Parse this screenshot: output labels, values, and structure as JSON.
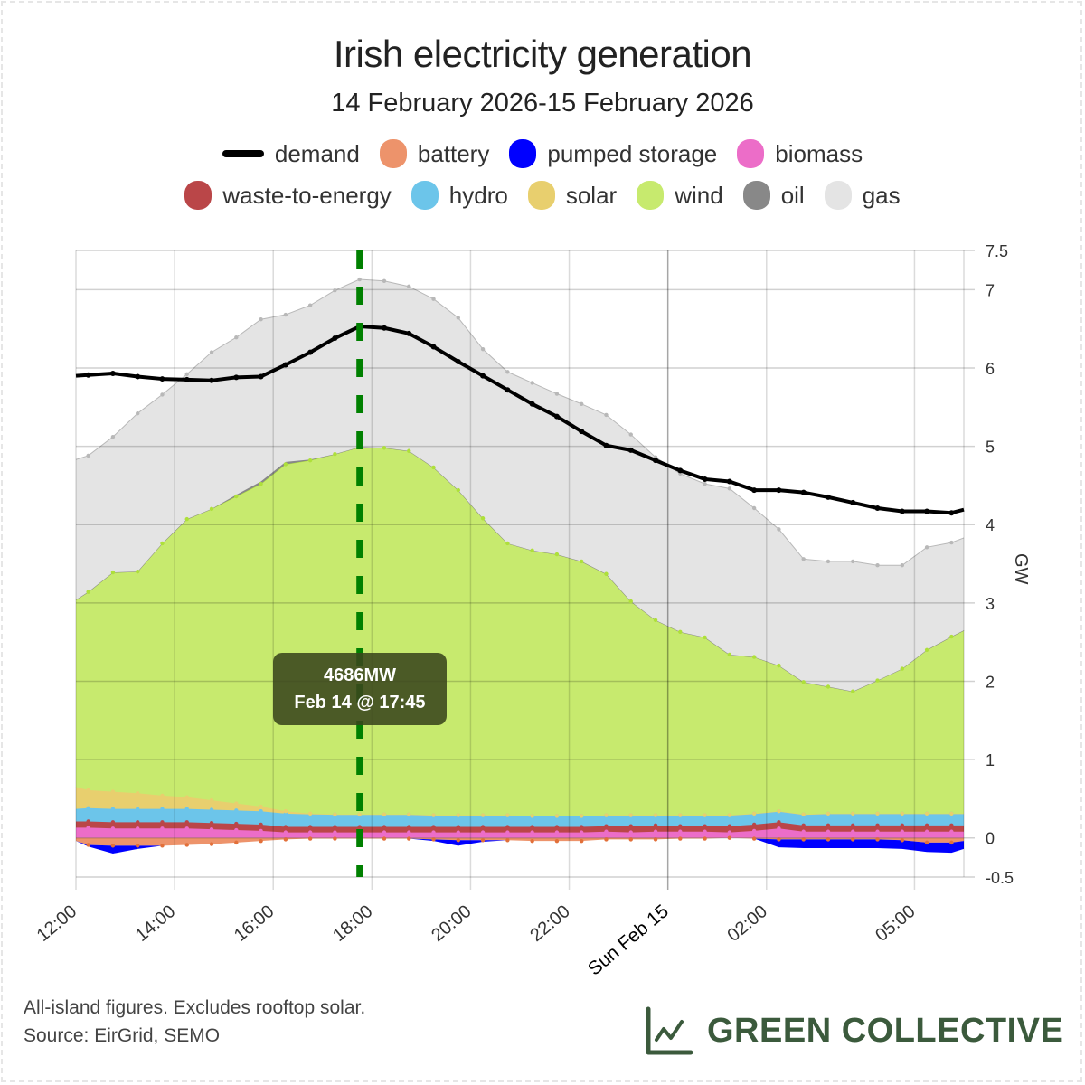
{
  "title": "Irish electricity generation",
  "subtitle": "14 February 2026-15 February 2026",
  "legend": [
    {
      "key": "demand",
      "label": "demand",
      "color": "#000000",
      "type": "line"
    },
    {
      "key": "battery",
      "label": "battery",
      "color": "#ED936B"
    },
    {
      "key": "pumped_storage",
      "label": "pumped storage",
      "color": "#0000FF"
    },
    {
      "key": "biomass",
      "label": "biomass",
      "color": "#EC6DC8"
    },
    {
      "key": "waste_to_energy",
      "label": "waste-to-energy",
      "color": "#BA4648"
    },
    {
      "key": "hydro",
      "label": "hydro",
      "color": "#6CC5EA"
    },
    {
      "key": "solar",
      "label": "solar",
      "color": "#E8CF6E"
    },
    {
      "key": "wind",
      "label": "wind",
      "color": "#C7EA6E"
    },
    {
      "key": "oil",
      "label": "oil",
      "color": "#888888"
    },
    {
      "key": "gas",
      "label": "gas",
      "color": "#E4E4E4"
    }
  ],
  "tooltip": {
    "value": "4686MW",
    "time": "Feb 14 @ 17:45"
  },
  "marker": {
    "x_hours": 5.75,
    "color": "#008000"
  },
  "footer": {
    "note1": "All-island figures. Excludes rooftop solar.",
    "note2": "Source: EirGrid, SEMO",
    "brand": "GREEN COLLECTIVE",
    "brand_color": "#3B5A3C"
  },
  "chart_data": {
    "type": "area",
    "title": "Irish electricity generation",
    "subtitle": "14 February 2026-15 February 2026",
    "xlabel": "",
    "ylabel": "GW",
    "ylim": [
      -0.5,
      7.5
    ],
    "yticks": [
      -0.5,
      0,
      1,
      2,
      3,
      4,
      5,
      6,
      7,
      7.5
    ],
    "ytick_labels": [
      "-0.5",
      "0",
      "1",
      "2",
      "3",
      "4",
      "5",
      "6",
      "7",
      "7.5"
    ],
    "xlim_hours_from_start": [
      0,
      18
    ],
    "xticks": [
      {
        "h": 0,
        "label": "12:00"
      },
      {
        "h": 2,
        "label": "14:00"
      },
      {
        "h": 4,
        "label": "16:00"
      },
      {
        "h": 6,
        "label": "18:00"
      },
      {
        "h": 8,
        "label": "20:00"
      },
      {
        "h": 10,
        "label": "22:00"
      },
      {
        "h": 12,
        "label": "Sun Feb 15",
        "major": true
      },
      {
        "h": 14,
        "label": "02:00"
      },
      {
        "h": 17,
        "label": "05:00"
      }
    ],
    "grid": true,
    "legend_position": "top",
    "x_hours": [
      0,
      0.25,
      0.75,
      1.25,
      1.75,
      2.25,
      2.75,
      3.25,
      3.75,
      4.25,
      4.75,
      5.25,
      5.75,
      6.25,
      6.75,
      7.25,
      7.75,
      8.25,
      8.75,
      9.25,
      9.75,
      10.25,
      10.75,
      11.25,
      11.75,
      12.25,
      12.75,
      13.25,
      13.75,
      14.25,
      14.75,
      15.25,
      15.75,
      16.25,
      16.75,
      17.25,
      17.75,
      18
    ],
    "demand": [
      5.9,
      5.91,
      5.93,
      5.89,
      5.86,
      5.85,
      5.84,
      5.88,
      5.89,
      6.04,
      6.2,
      6.38,
      6.53,
      6.51,
      6.44,
      6.27,
      6.08,
      5.9,
      5.72,
      5.54,
      5.38,
      5.19,
      5.01,
      4.95,
      4.82,
      4.69,
      4.58,
      4.55,
      4.44,
      4.44,
      4.41,
      4.35,
      4.28,
      4.21,
      4.17,
      4.17,
      4.15,
      4.19
    ],
    "series": [
      {
        "name": "biomass",
        "values": [
          0.13,
          0.13,
          0.12,
          0.12,
          0.12,
          0.12,
          0.11,
          0.1,
          0.09,
          0.07,
          0.07,
          0.07,
          0.07,
          0.07,
          0.07,
          0.07,
          0.07,
          0.07,
          0.07,
          0.07,
          0.07,
          0.07,
          0.08,
          0.07,
          0.08,
          0.08,
          0.08,
          0.07,
          0.09,
          0.12,
          0.08,
          0.08,
          0.08,
          0.08,
          0.08,
          0.08,
          0.08,
          0.08
        ]
      },
      {
        "name": "waste-to-energy",
        "values": [
          0.08,
          0.08,
          0.08,
          0.08,
          0.08,
          0.08,
          0.08,
          0.08,
          0.08,
          0.07,
          0.07,
          0.07,
          0.07,
          0.07,
          0.07,
          0.07,
          0.07,
          0.07,
          0.07,
          0.07,
          0.07,
          0.07,
          0.07,
          0.08,
          0.08,
          0.07,
          0.07,
          0.08,
          0.08,
          0.08,
          0.08,
          0.08,
          0.08,
          0.08,
          0.08,
          0.08,
          0.08,
          0.08
        ]
      },
      {
        "name": "hydro",
        "values": [
          0.16,
          0.17,
          0.17,
          0.17,
          0.17,
          0.17,
          0.17,
          0.17,
          0.17,
          0.17,
          0.16,
          0.16,
          0.16,
          0.16,
          0.16,
          0.15,
          0.15,
          0.15,
          0.15,
          0.14,
          0.14,
          0.14,
          0.14,
          0.14,
          0.13,
          0.14,
          0.14,
          0.14,
          0.14,
          0.14,
          0.14,
          0.15,
          0.15,
          0.15,
          0.15,
          0.15,
          0.15,
          0.15
        ]
      },
      {
        "name": "solar",
        "values": [
          0.28,
          0.23,
          0.22,
          0.2,
          0.17,
          0.15,
          0.12,
          0.09,
          0.06,
          0.03,
          0.01,
          0.0,
          0.0,
          0.0,
          0.0,
          0.0,
          0.0,
          0.0,
          0.0,
          0.0,
          0.0,
          0.0,
          0.0,
          0.0,
          0.0,
          0.0,
          0.0,
          0.0,
          0.0,
          0.0,
          0.0,
          0.0,
          0.0,
          0.0,
          0.0,
          0.0,
          0.0,
          0.0
        ]
      },
      {
        "name": "wind",
        "values": [
          2.39,
          2.53,
          2.8,
          2.83,
          3.22,
          3.55,
          3.72,
          3.92,
          4.12,
          4.43,
          4.51,
          4.6,
          4.69,
          4.68,
          4.64,
          4.44,
          4.15,
          3.79,
          3.47,
          3.39,
          3.34,
          3.25,
          3.08,
          2.73,
          2.49,
          2.34,
          2.27,
          2.05,
          2.0,
          1.86,
          1.69,
          1.62,
          1.56,
          1.7,
          1.85,
          2.09,
          2.26,
          2.34
        ]
      },
      {
        "name": "oil",
        "values": [
          0.0,
          0.0,
          0.0,
          0.0,
          0.0,
          0.0,
          0.0,
          0.02,
          0.03,
          0.03,
          0.01,
          0.0,
          0.0,
          0.0,
          0.0,
          0.0,
          0.0,
          0.0,
          0.0,
          0.0,
          0.0,
          0.0,
          0.0,
          0.0,
          0.0,
          0.0,
          0.0,
          0.0,
          0.0,
          0.0,
          0.0,
          0.0,
          0.0,
          0.0,
          0.0,
          0.0,
          0.0,
          0.0
        ]
      },
      {
        "name": "gas",
        "values": [
          1.79,
          1.74,
          1.73,
          2.02,
          1.9,
          1.85,
          2.0,
          2.01,
          2.07,
          1.88,
          1.97,
          2.09,
          2.14,
          2.13,
          2.1,
          2.15,
          2.2,
          2.16,
          2.19,
          2.14,
          2.05,
          2.01,
          2.03,
          2.13,
          2.08,
          2.02,
          1.96,
          2.12,
          1.9,
          1.74,
          1.57,
          1.6,
          1.66,
          1.47,
          1.32,
          1.31,
          1.2,
          1.18
        ]
      },
      {
        "name": "battery",
        "values": [
          -0.04,
          -0.09,
          -0.1,
          -0.1,
          -0.1,
          -0.09,
          -0.08,
          -0.06,
          -0.04,
          -0.02,
          -0.01,
          -0.01,
          -0.01,
          -0.01,
          -0.01,
          -0.02,
          -0.03,
          -0.03,
          -0.03,
          -0.04,
          -0.04,
          -0.04,
          -0.02,
          -0.02,
          -0.02,
          -0.01,
          -0.01,
          0.0,
          -0.01,
          -0.02,
          -0.02,
          -0.02,
          -0.02,
          -0.02,
          -0.03,
          -0.06,
          -0.06,
          -0.04
        ]
      },
      {
        "name": "pumped storage",
        "values": [
          0.0,
          -0.02,
          -0.1,
          -0.04,
          0.0,
          0.0,
          0.0,
          0.0,
          0.0,
          0.0,
          0.0,
          0.0,
          0.0,
          0.0,
          0.0,
          -0.02,
          -0.07,
          -0.02,
          0.0,
          0.0,
          0.0,
          0.0,
          0.0,
          0.0,
          0.0,
          0.0,
          0.0,
          0.0,
          0.0,
          -0.1,
          -0.11,
          -0.11,
          -0.11,
          -0.11,
          -0.11,
          -0.12,
          -0.13,
          -0.1
        ]
      }
    ]
  }
}
